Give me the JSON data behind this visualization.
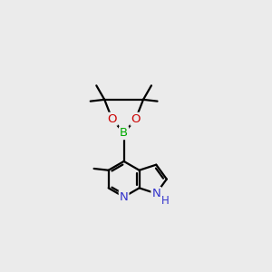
{
  "background_color": "#ebebeb",
  "atom_colors": {
    "C": "#000000",
    "H": "#000000",
    "N": "#3333cc",
    "O": "#cc0000",
    "B": "#00aa00"
  },
  "bond_color": "#000000",
  "bond_width": 1.6,
  "figsize": [
    3.0,
    3.0
  ],
  "dpi": 100,
  "xlim": [
    0,
    10
  ],
  "ylim": [
    0,
    10
  ]
}
